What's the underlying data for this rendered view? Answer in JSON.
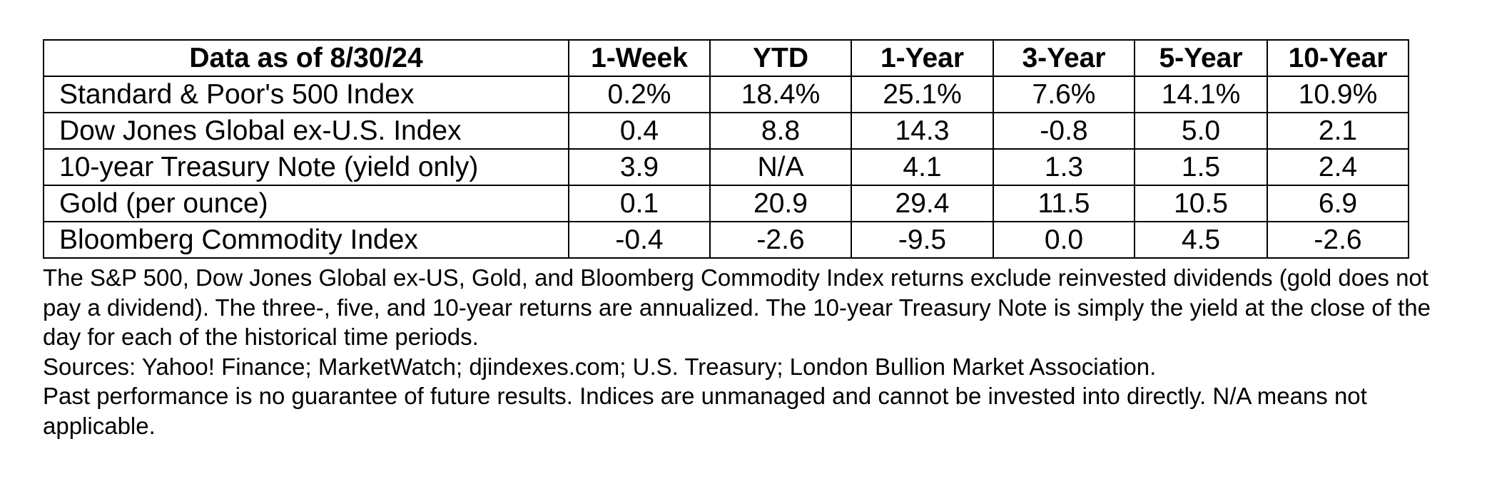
{
  "table": {
    "headers": [
      "Data as of 8/30/24",
      "1-Week",
      "YTD",
      "1-Year",
      "3-Year",
      "5-Year",
      "10-Year"
    ],
    "rows": [
      [
        "Standard & Poor's 500 Index",
        "0.2%",
        "18.4%",
        "25.1%",
        "7.6%",
        "14.1%",
        "10.9%"
      ],
      [
        "Dow Jones Global ex-U.S. Index",
        "0.4",
        "8.8",
        "14.3",
        "-0.8",
        "5.0",
        "2.1"
      ],
      [
        "10-year Treasury Note (yield only)",
        "3.9",
        "N/A",
        "4.1",
        "1.3",
        "1.5",
        "2.4"
      ],
      [
        "Gold (per ounce)",
        "0.1",
        "20.9",
        "29.4",
        "11.5",
        "10.5",
        "6.9"
      ],
      [
        "Bloomberg Commodity Index",
        "-0.4",
        "-2.6",
        "-9.5",
        "0.0",
        "4.5",
        "-2.6"
      ]
    ]
  },
  "notes": {
    "methodology": "The S&P 500, Dow Jones Global ex-US, Gold, and Bloomberg Commodity Index returns exclude reinvested dividends (gold does not pay a dividend). The three-, five, and 10-year returns are annualized. The 10-year Treasury Note is simply the yield at the close of the day for each of the historical time periods.",
    "sources": "Sources: Yahoo! Finance; MarketWatch; djindexes.com; U.S. Treasury; London Bullion Market Association.",
    "disclaimer": "Past performance is no guarantee of future results. Indices are unmanaged and cannot be invested into directly. N/A means not applicable."
  }
}
